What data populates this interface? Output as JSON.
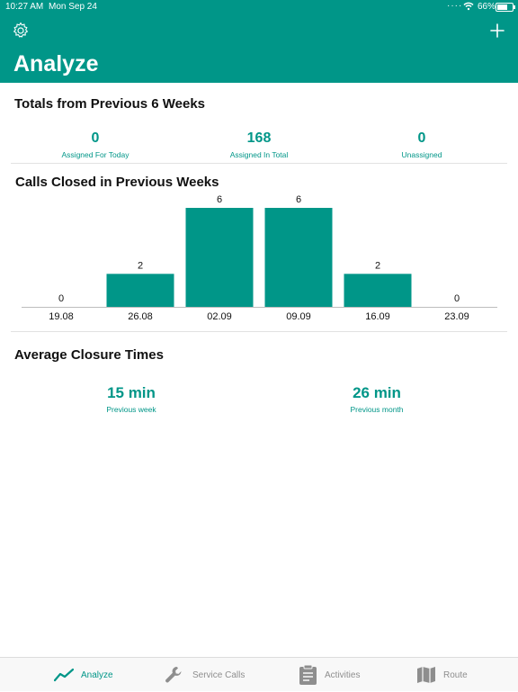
{
  "status": {
    "time": "10:27 AM",
    "date": "Mon Sep 24",
    "battery": "66%"
  },
  "nav": {
    "title": "Analyze",
    "settings_icon": "gear-icon",
    "add_icon": "plus-icon"
  },
  "totals": {
    "title": "Totals from Previous 6 Weeks",
    "items": [
      {
        "value": "0",
        "label": "Assigned For Today"
      },
      {
        "value": "168",
        "label": "Assigned In Total"
      },
      {
        "value": "0",
        "label": "Unassigned"
      }
    ]
  },
  "calls_section": {
    "title": "Calls Closed in Previous Weeks"
  },
  "chart_data": {
    "type": "bar",
    "title": "Calls Closed in Previous Weeks",
    "categories": [
      "19.08",
      "26.08",
      "02.09",
      "09.09",
      "16.09",
      "23.09"
    ],
    "values": [
      0,
      2,
      6,
      6,
      2,
      0
    ],
    "ylim": [
      0,
      6
    ],
    "grid": false,
    "color": "#009688"
  },
  "closure": {
    "title": "Average Closure Times",
    "items": [
      {
        "value": "15 min",
        "label": "Previous week"
      },
      {
        "value": "26 min",
        "label": "Previous month"
      }
    ]
  },
  "tabs": [
    {
      "label": "Analyze",
      "icon": "trend-line-icon",
      "active": true
    },
    {
      "label": "Service Calls",
      "icon": "wrench-icon",
      "active": false
    },
    {
      "label": "Activities",
      "icon": "clipboard-icon",
      "active": false
    },
    {
      "label": "Route",
      "icon": "map-icon",
      "active": false
    }
  ],
  "colors": {
    "accent": "#009688",
    "inactive": "#8e8e8e"
  }
}
